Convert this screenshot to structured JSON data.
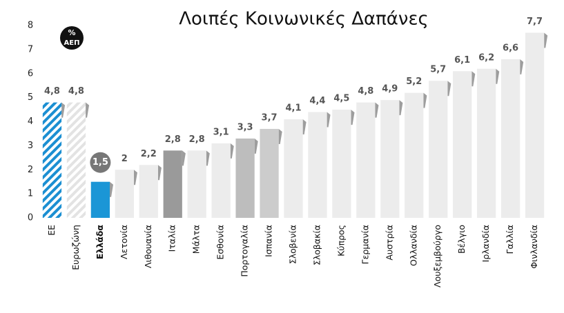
{
  "chart_data": {
    "type": "bar",
    "title": "Λοιπές Κοινωνικές Δαπάνες",
    "unit_label": [
      "%",
      "ΑΕΠ"
    ],
    "categories": [
      "ΕΕ",
      "Ευρωζώνη",
      "Ελλάδα",
      "Λετονία",
      "Λιθουανία",
      "Ιταλία",
      "Μάλτα",
      "Εσθονία",
      "Πορτογαλία",
      "Ισπανία",
      "Σλοβενία",
      "Σλοβακία",
      "Κύπρος",
      "Γερμανία",
      "Αυστρία",
      "Ολλανδία",
      "Λουξεμβούργο",
      "Βέλγιο",
      "Ιρλανδία",
      "Γαλλία",
      "Φινλανδία"
    ],
    "values": [
      4.8,
      4.8,
      1.5,
      2,
      2.2,
      2.8,
      2.8,
      3.1,
      3.3,
      3.7,
      4.1,
      4.4,
      4.5,
      4.8,
      4.9,
      5.2,
      5.7,
      6.1,
      6.2,
      6.6,
      7.7
    ],
    "value_labels": [
      "4,8",
      "4,8",
      "1,5",
      "2",
      "2,2",
      "2,8",
      "2,8",
      "3,1",
      "3,3",
      "3,7",
      "4,1",
      "4,4",
      "4,5",
      "4,8",
      "4,9",
      "5,2",
      "5,7",
      "6,1",
      "6,2",
      "6,6",
      "7,7"
    ],
    "colors": [
      "#1b8fd2",
      "#e3e3e3",
      "#1b96d6",
      "#ececec",
      "#ececec",
      "#9a9a9a",
      "#ececec",
      "#ececec",
      "#bdbdbd",
      "#cccccc",
      "#ececec",
      "#ececec",
      "#ececec",
      "#ececec",
      "#ececec",
      "#ececec",
      "#ececec",
      "#ececec",
      "#ececec",
      "#ececec",
      "#ececec"
    ],
    "patterns": [
      "stripes",
      "stripes",
      "solid",
      "solid",
      "solid",
      "solid",
      "solid",
      "solid",
      "solid",
      "solid",
      "solid",
      "solid",
      "solid",
      "solid",
      "solid",
      "solid",
      "solid",
      "solid",
      "solid",
      "solid",
      "solid"
    ],
    "highlight": 2,
    "ylim": [
      0,
      8
    ],
    "yticks": [
      0,
      1,
      2,
      3,
      4,
      5,
      6,
      7,
      8
    ],
    "grid": false
  }
}
